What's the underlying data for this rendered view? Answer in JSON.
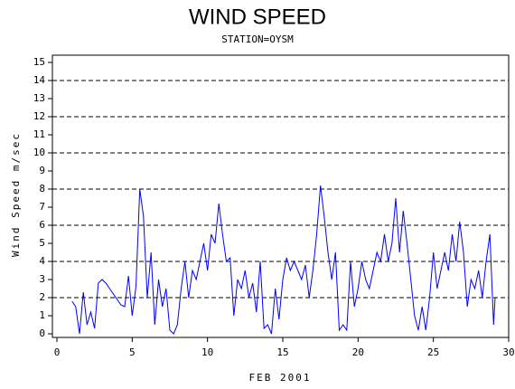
{
  "chart_data": {
    "type": "line",
    "title": "WIND SPEED",
    "subtitle": "STATION=OYSM",
    "x_label": "FEB 2001",
    "y_label": "Wind Speed m/sec",
    "xlim": [
      -0.3,
      30
    ],
    "xticks": [
      0,
      5,
      10,
      15,
      20,
      25,
      30
    ],
    "ylim": [
      -0.2,
      15.4
    ],
    "yticks": [
      0,
      1,
      2,
      3,
      4,
      5,
      6,
      7,
      8,
      9,
      10,
      11,
      12,
      13,
      14,
      15
    ],
    "grid": true,
    "grid_style": "dashed",
    "color": "#0000ff",
    "x": [
      1.0,
      1.25,
      1.5,
      1.75,
      2.0,
      2.25,
      2.5,
      2.75,
      3.0,
      3.25,
      3.5,
      3.75,
      4.0,
      4.25,
      4.5,
      4.75,
      5.0,
      5.25,
      5.5,
      5.75,
      6.0,
      6.25,
      6.5,
      6.75,
      7.0,
      7.25,
      7.5,
      7.75,
      8.0,
      8.25,
      8.5,
      8.75,
      9.0,
      9.25,
      9.5,
      9.75,
      10.0,
      10.25,
      10.5,
      10.75,
      11.0,
      11.25,
      11.5,
      11.75,
      12.0,
      12.25,
      12.5,
      12.75,
      13.0,
      13.25,
      13.5,
      13.75,
      14.0,
      14.25,
      14.5,
      14.75,
      15.0,
      15.25,
      15.5,
      15.75,
      16.0,
      16.25,
      16.5,
      16.75,
      17.0,
      17.25,
      17.5,
      17.75,
      18.0,
      18.25,
      18.5,
      18.75,
      19.0,
      19.25,
      19.5,
      19.75,
      20.0,
      20.25,
      20.5,
      20.75,
      21.0,
      21.25,
      21.5,
      21.75,
      22.0,
      22.25,
      22.5,
      22.75,
      23.0,
      23.25,
      23.5,
      23.75,
      24.0,
      24.25,
      24.5,
      24.75,
      25.0,
      25.25,
      25.5,
      25.75,
      26.0,
      26.25,
      26.5,
      26.75,
      27.0,
      27.25,
      27.5,
      27.75,
      28.0,
      28.25,
      28.5,
      28.75,
      29.0,
      29.1
    ],
    "values": [
      1.8,
      1.5,
      0,
      2.3,
      0.5,
      1.2,
      0.3,
      2.8,
      3.0,
      2.8,
      2.5,
      2.2,
      1.9,
      1.6,
      1.5,
      3.2,
      1.0,
      2.6,
      8.0,
      6.5,
      2.0,
      4.5,
      0.5,
      3.0,
      1.5,
      2.5,
      0.2,
      0,
      0.5,
      2.5,
      4.0,
      2.0,
      3.5,
      3.0,
      4.0,
      5.0,
      3.5,
      5.5,
      5.0,
      7.2,
      5.5,
      4.0,
      4.2,
      1.0,
      3.0,
      2.5,
      3.5,
      2.0,
      2.8,
      1.2,
      4.0,
      0.3,
      0.5,
      0,
      2.5,
      0.8,
      3.0,
      4.2,
      3.5,
      4.0,
      3.5,
      3.0,
      3.8,
      2.0,
      3.5,
      5.5,
      8.2,
      6.5,
      4.5,
      3.0,
      4.5,
      0.2,
      0.5,
      0.2,
      4.0,
      1.5,
      2.5,
      4.0,
      3.0,
      2.5,
      3.5,
      4.5,
      4.0,
      5.5,
      4.0,
      5.0,
      7.5,
      4.5,
      6.8,
      5.0,
      3.0,
      1.0,
      0.2,
      1.5,
      0.2,
      2.0,
      4.5,
      2.5,
      3.5,
      4.5,
      3.5,
      5.5,
      4.0,
      6.2,
      4.5,
      1.5,
      3.0,
      2.5,
      3.5,
      2.0,
      4.0,
      5.5,
      0.5,
      2.0
    ]
  }
}
